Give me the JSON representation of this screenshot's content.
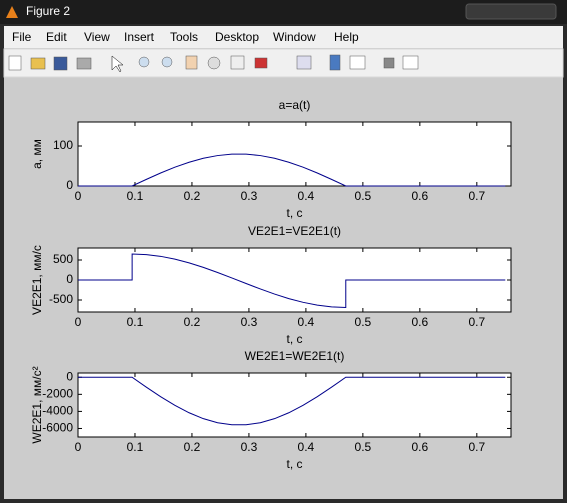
{
  "window": {
    "title": "Figure 2"
  },
  "menu": [
    "File",
    "Edit",
    "View",
    "Insert",
    "Tools",
    "Desktop",
    "Window",
    "Help"
  ],
  "chart_data": [
    {
      "type": "line",
      "title": "a=a(t)",
      "x_label": "t, c",
      "y_label": "a, мм",
      "x": [
        0,
        0.05,
        0.095,
        0.12,
        0.145,
        0.17,
        0.195,
        0.22,
        0.245,
        0.27,
        0.295,
        0.32,
        0.345,
        0.37,
        0.395,
        0.42,
        0.445,
        0.47,
        0.6,
        0.75
      ],
      "values": [
        0,
        0,
        0,
        16.6,
        32.5,
        47,
        59.4,
        69.3,
        76.1,
        79.6,
        79.6,
        76.1,
        69.3,
        59.4,
        47,
        32.5,
        16.6,
        0,
        0,
        0
      ],
      "color": "#00008b",
      "xlim": [
        0,
        0.76
      ],
      "ylim": [
        0,
        160
      ],
      "xticks": [
        0,
        0.1,
        0.2,
        0.3,
        0.4,
        0.5,
        0.6,
        0.7
      ],
      "yticks": [
        0,
        100
      ]
    },
    {
      "type": "line",
      "title": "VE2E1=VE2E1(t)",
      "x_label": "t, c",
      "y_label": "VE2E1, мм/с",
      "x": [
        0,
        0.095,
        0.095,
        0.12,
        0.145,
        0.17,
        0.195,
        0.22,
        0.245,
        0.27,
        0.295,
        0.32,
        0.345,
        0.37,
        0.395,
        0.42,
        0.445,
        0.47,
        0.47,
        0.75
      ],
      "values": [
        0,
        0,
        650,
        635,
        592,
        522,
        429,
        316,
        188,
        52,
        -88,
        -224,
        -352,
        -465,
        -558,
        -628,
        -671,
        -686,
        0,
        0
      ],
      "color": "#00008b",
      "xlim": [
        0,
        0.76
      ],
      "ylim": [
        -800,
        800
      ],
      "xticks": [
        0,
        0.1,
        0.2,
        0.3,
        0.4,
        0.5,
        0.6,
        0.7
      ],
      "yticks": [
        -500,
        0,
        500
      ]
    },
    {
      "type": "line",
      "title": "WE2E1=WE2E1(t)",
      "x_label": "t, c",
      "y_label": "WE2E1, мм/с²",
      "x": [
        0,
        0.05,
        0.095,
        0.12,
        0.145,
        0.17,
        0.195,
        0.22,
        0.245,
        0.27,
        0.295,
        0.32,
        0.345,
        0.37,
        0.395,
        0.42,
        0.445,
        0.47,
        0.6,
        0.75
      ],
      "values": [
        0,
        0,
        0,
        -1164,
        -2278,
        -3292,
        -4161,
        -4850,
        -5326,
        -5569,
        -5569,
        -5326,
        -4850,
        -4161,
        -3292,
        -2278,
        -1164,
        0,
        0,
        0
      ],
      "color": "#00008b",
      "xlim": [
        0,
        0.76
      ],
      "ylim": [
        -7000,
        500
      ],
      "xticks": [
        0,
        0.1,
        0.2,
        0.3,
        0.4,
        0.5,
        0.6,
        0.7
      ],
      "yticks": [
        -6000,
        -4000,
        -2000,
        0
      ]
    }
  ]
}
